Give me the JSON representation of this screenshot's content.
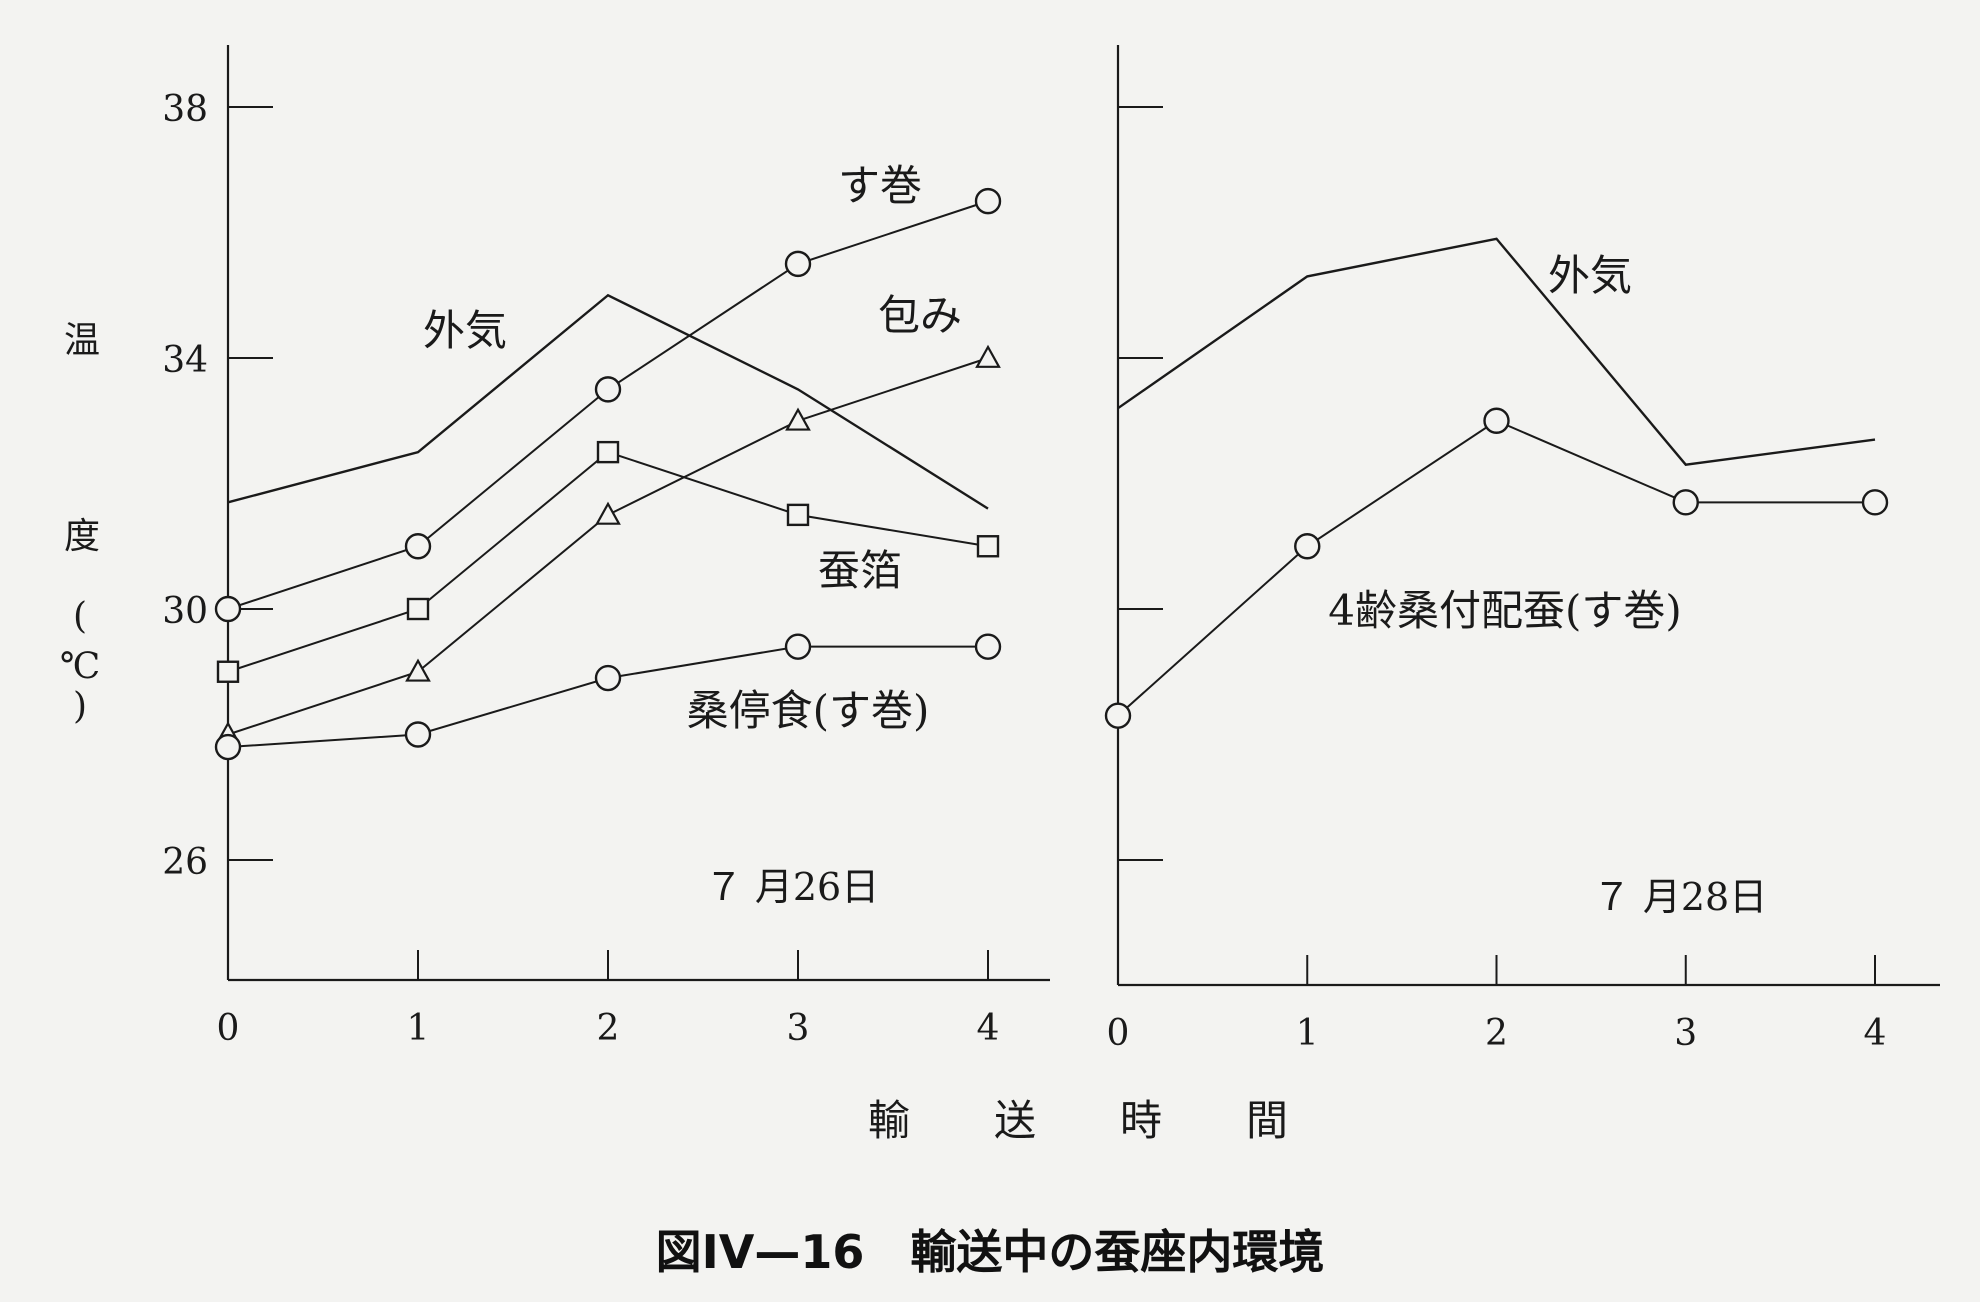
{
  "figure_caption": "図IV—16　輸送中の蚕座内環境",
  "y_axis": {
    "label_chars": [
      "温",
      "度",
      "(",
      "℃",
      ")"
    ],
    "ticks": [
      "26",
      "30",
      "34",
      "38"
    ]
  },
  "x_axis": {
    "label": "輸　　送　　時　　間"
  },
  "chart_data": [
    {
      "type": "line",
      "panel": "left",
      "date_label": "７ 月26日",
      "x": [
        0,
        1,
        2,
        3,
        4
      ],
      "xlim": [
        0,
        4
      ],
      "ylim": [
        24,
        39
      ],
      "yticks": [
        26,
        30,
        34,
        38
      ],
      "grid": false,
      "series": [
        {
          "name": "外気",
          "marker": "none",
          "values": [
            31.7,
            32.5,
            35.0,
            33.5,
            31.6
          ]
        },
        {
          "name": "す巻",
          "marker": "circle",
          "values": [
            30.0,
            31.0,
            33.5,
            35.5,
            36.5
          ]
        },
        {
          "name": "包み",
          "marker": "triangle",
          "values": [
            28.0,
            29.0,
            31.5,
            33.0,
            34.0
          ]
        },
        {
          "name": "蚕箔",
          "marker": "square",
          "values": [
            29.0,
            30.0,
            32.5,
            31.5,
            31.0
          ]
        },
        {
          "name": "桑停食(す巻)",
          "marker": "circle",
          "values": [
            27.8,
            28.0,
            28.9,
            29.4,
            29.4
          ]
        }
      ]
    },
    {
      "type": "line",
      "panel": "right",
      "date_label": "７ 月28日",
      "x": [
        0,
        1,
        2,
        3,
        4
      ],
      "xlim": [
        0,
        4
      ],
      "ylim": [
        24,
        39
      ],
      "yticks": [
        26,
        30,
        34,
        38
      ],
      "grid": false,
      "series": [
        {
          "name": "外気",
          "marker": "none",
          "values": [
            33.2,
            35.3,
            35.9,
            32.3,
            32.7
          ]
        },
        {
          "name": "4齢桑付配蚕(す巻)",
          "marker": "circle",
          "values": [
            28.3,
            31.0,
            33.0,
            31.7,
            31.7
          ]
        }
      ]
    }
  ]
}
